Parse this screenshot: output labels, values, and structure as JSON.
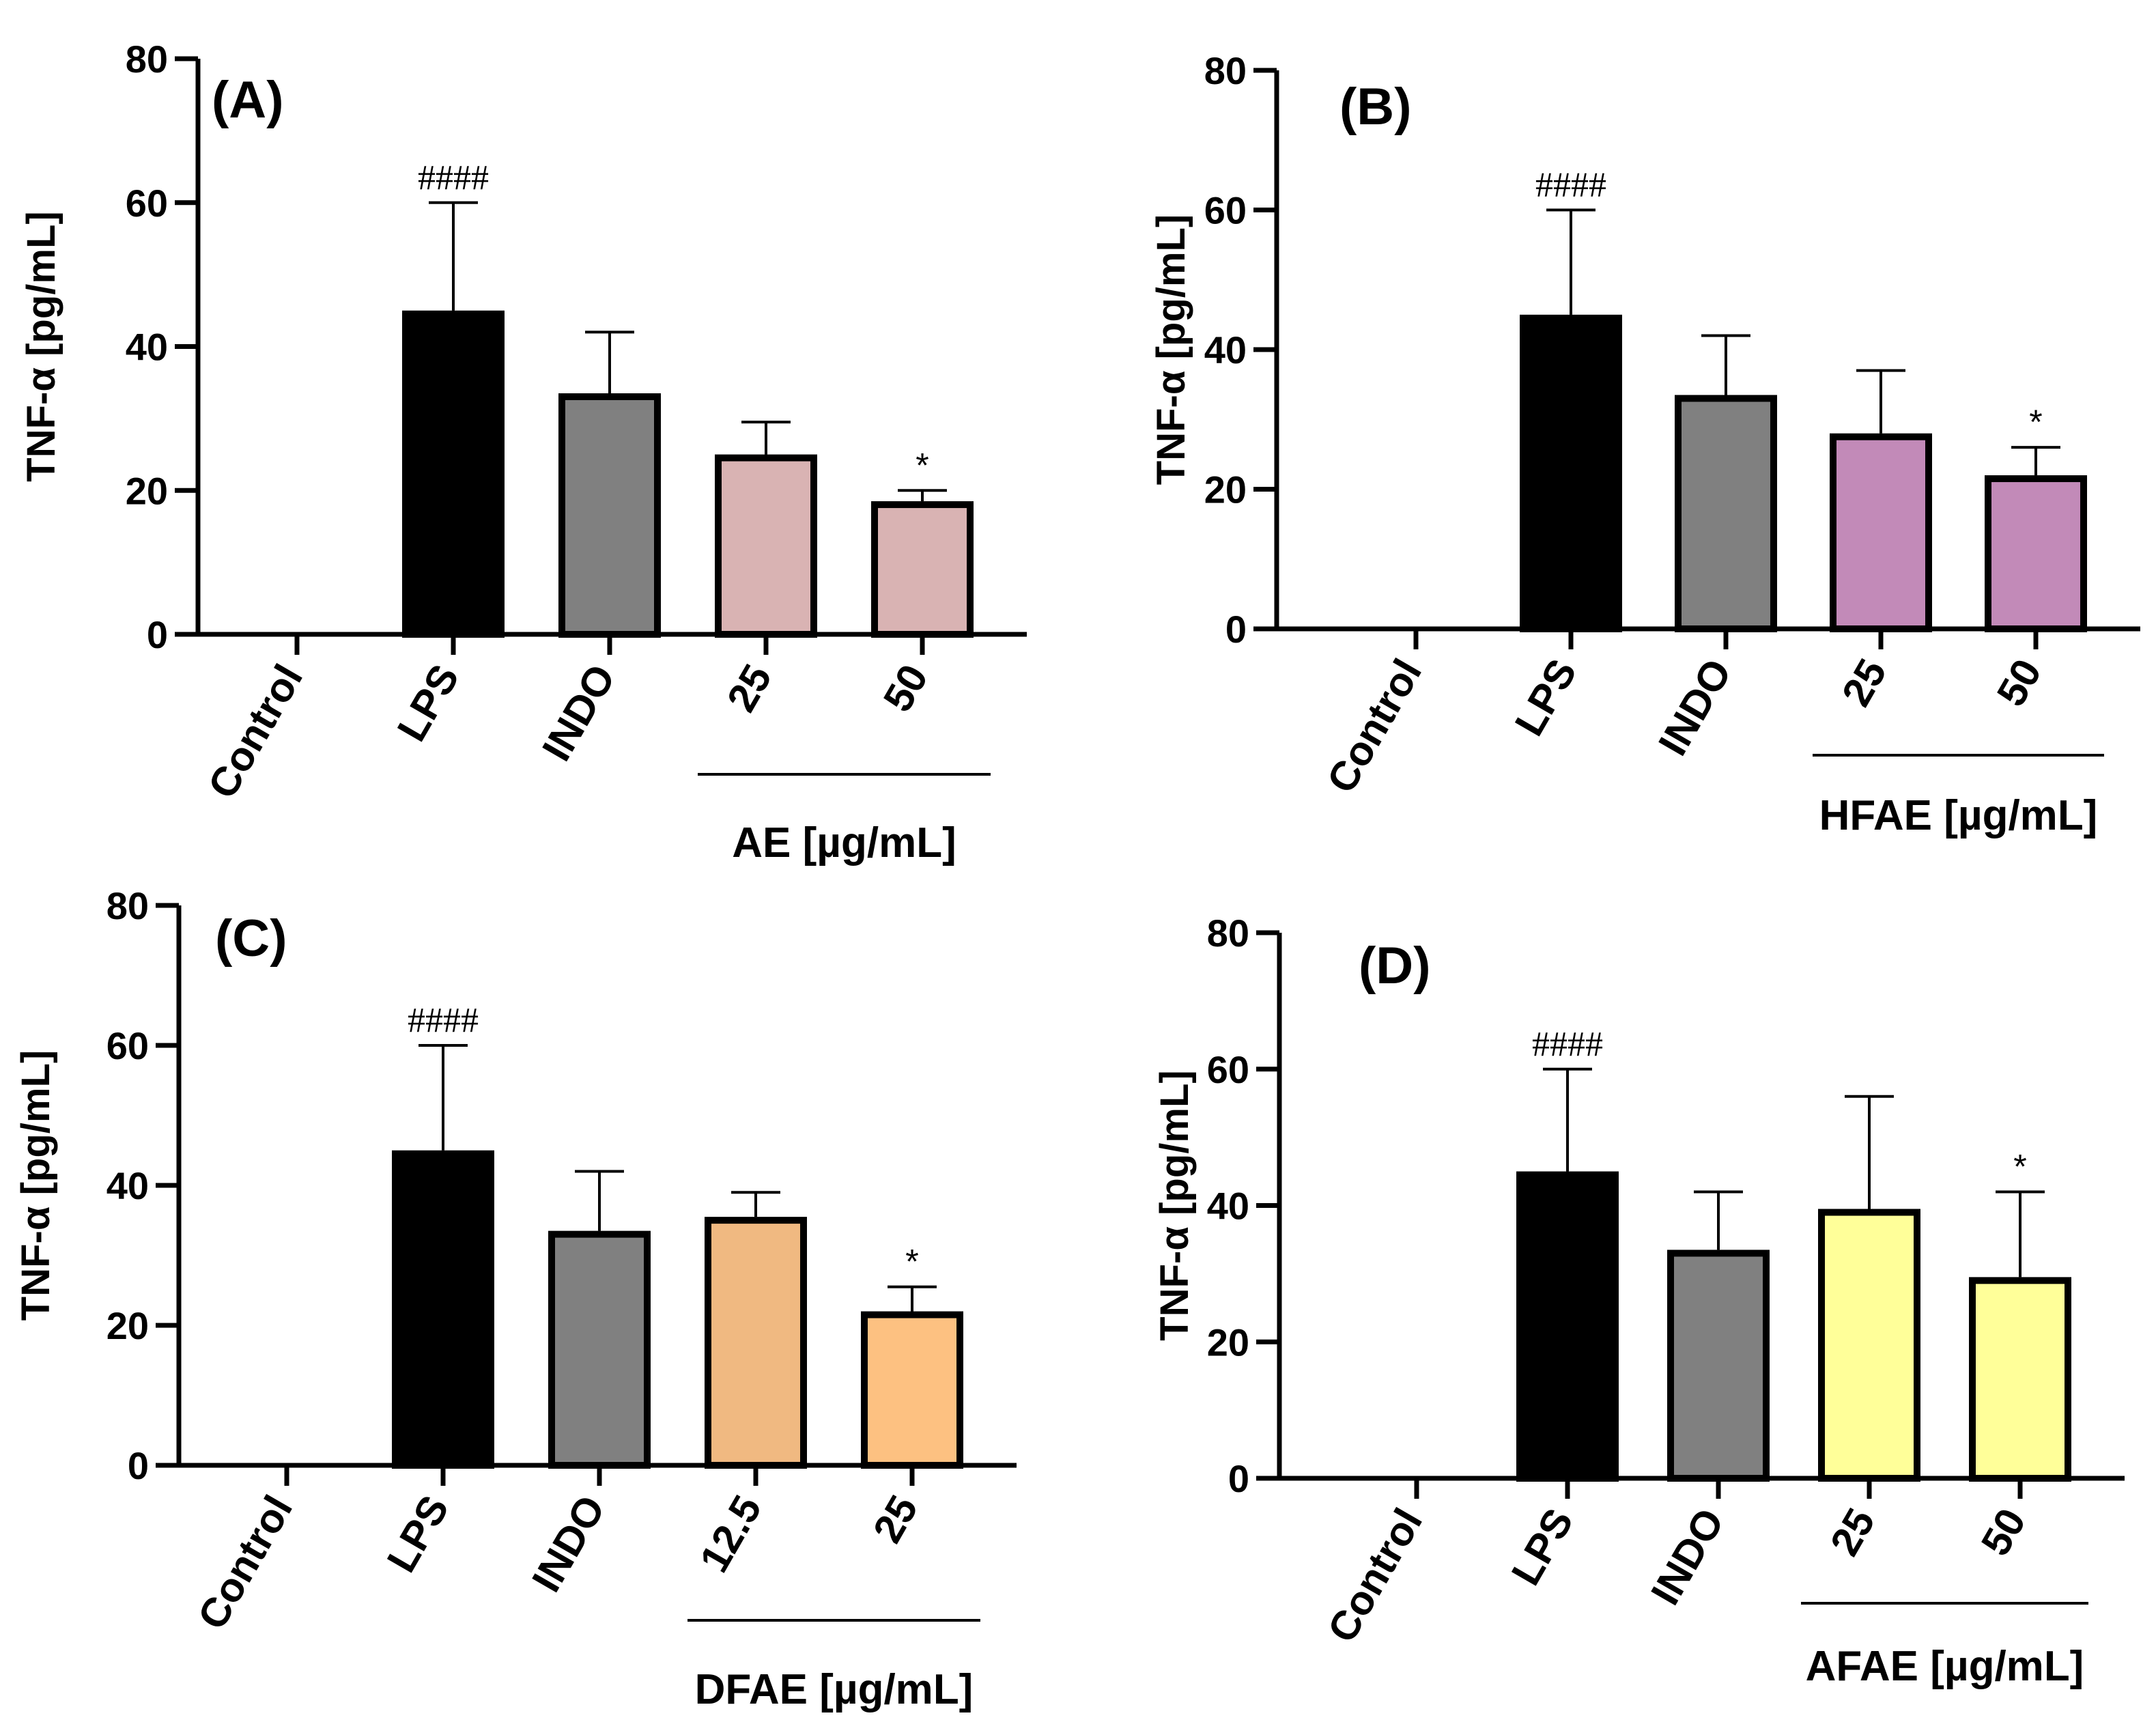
{
  "chart_data": [
    {
      "type": "bar",
      "panel": "(A)",
      "categories": [
        "Control",
        "LPS",
        "INDO",
        "25",
        "50"
      ],
      "values": [
        0,
        45,
        33.5,
        25,
        18.5
      ],
      "errors": [
        0,
        15,
        8.5,
        4.5,
        1.5
      ],
      "colors": [
        "#ffffff",
        "#000000",
        "#808080",
        "#d9b3b3",
        "#d9b3b3"
      ],
      "annotations": [
        "",
        "####",
        "",
        "",
        "*"
      ],
      "ylabel": "TNF-α [pg/mL]",
      "yticks": [
        0,
        20,
        40,
        60,
        80
      ],
      "ylim": [
        0,
        80
      ],
      "group_label": "AE [µg/mL]"
    },
    {
      "type": "bar",
      "panel": "(B)",
      "categories": [
        "Control",
        "LPS",
        "INDO",
        "25",
        "50"
      ],
      "values": [
        0,
        45,
        33.5,
        28,
        22
      ],
      "errors": [
        0,
        15,
        8.5,
        9,
        4
      ],
      "colors": [
        "#ffffff",
        "#000000",
        "#808080",
        "#c28ab8",
        "#c28ab8"
      ],
      "annotations": [
        "",
        "####",
        "",
        "",
        "*"
      ],
      "ylabel": "TNF-α [pg/mL]",
      "yticks": [
        0,
        20,
        40,
        60,
        80
      ],
      "ylim": [
        0,
        80
      ],
      "group_label": "HFAE [µg/mL]"
    },
    {
      "type": "bar",
      "panel": "(C)",
      "categories": [
        "Control",
        "LPS",
        "INDO",
        "12.5",
        "25"
      ],
      "values": [
        0,
        45,
        33.5,
        35.5,
        22
      ],
      "errors": [
        0,
        15,
        8.5,
        3.5,
        3.5
      ],
      "colors": [
        "#ffffff",
        "#000000",
        "#808080",
        "#f0b981",
        "#fdc181"
      ],
      "annotations": [
        "",
        "####",
        "",
        "",
        "*"
      ],
      "ylabel": "TNF-α [pg/mL]",
      "yticks": [
        0,
        20,
        40,
        60,
        80
      ],
      "ylim": [
        0,
        80
      ],
      "group_label": "DFAE [µg/mL]"
    },
    {
      "type": "bar",
      "panel": "(D)",
      "categories": [
        "Control",
        "LPS",
        "INDO",
        "25",
        "50"
      ],
      "values": [
        0,
        45,
        33.5,
        39.5,
        29.5
      ],
      "errors": [
        0,
        15,
        8.5,
        16.5,
        12.5
      ],
      "colors": [
        "#ffffff",
        "#000000",
        "#808080",
        "#ffff99",
        "#ffff99"
      ],
      "annotations": [
        "",
        "####",
        "",
        "",
        "*"
      ],
      "ylabel": "TNF-α [pg/mL]",
      "yticks": [
        0,
        20,
        40,
        60,
        80
      ],
      "ylim": [
        0,
        80
      ],
      "group_label": "AFAE [µg/mL]"
    }
  ]
}
